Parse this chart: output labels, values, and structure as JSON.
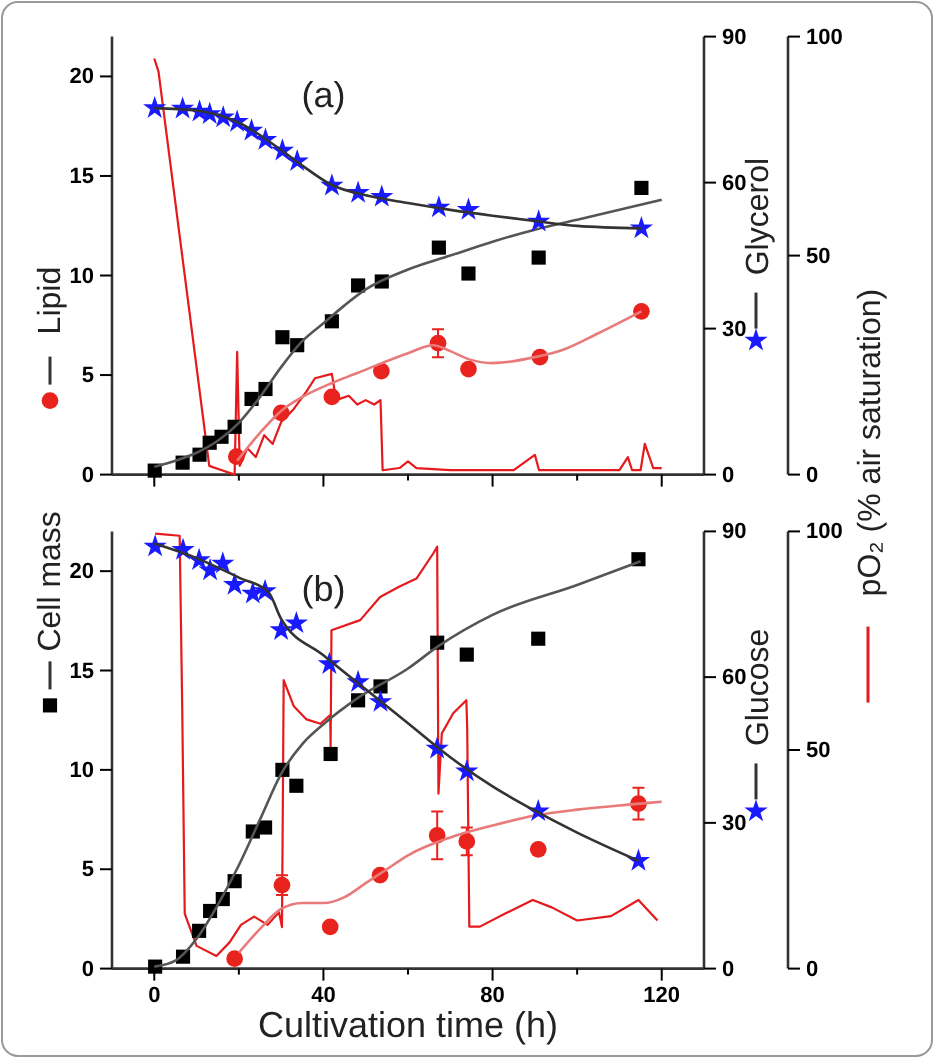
{
  "chart_data": [
    {
      "type": "scatter",
      "title": "(a)",
      "ylabel": "Lipid",
      "y2label": "Glycerol",
      "xlim": [
        -10,
        130
      ],
      "xticks": [
        0,
        {
          "value": 20,
          "label": null
        },
        40,
        {
          "value": 60,
          "label": null
        },
        80,
        {
          "value": 100,
          "label": null
        },
        120
      ],
      "ylim": [
        0,
        22
      ],
      "yticks": [
        0,
        5,
        10,
        15,
        20
      ],
      "y2lim": [
        0,
        90
      ],
      "y2ticks": [
        0,
        30,
        60,
        90
      ],
      "y3lim": [
        0,
        100
      ],
      "y3ticks": [
        0,
        50,
        100
      ],
      "tick_labels": "y",
      "grid": false,
      "series": [
        {
          "marker": "square",
          "color": "#000000",
          "x": [
            0.1,
            6.7,
            10.7,
            13.1,
            15.9,
            19,
            23,
            26.3,
            30.3,
            33.8,
            42,
            48.2,
            53.8,
            67.3,
            74.3,
            90.9,
            115.2
          ],
          "values": [
            0.2,
            0.6,
            1.0,
            1.6,
            1.9,
            2.4,
            3.8,
            4.3,
            6.9,
            6.5,
            7.7,
            9.5,
            9.7,
            11.4,
            10.1,
            10.9,
            14.4
          ]
        },
        {
          "type": "line",
          "color": "#555555",
          "x": [
            0,
            5,
            10,
            15,
            20,
            25,
            30,
            35,
            40,
            45,
            50,
            60,
            70,
            80,
            90,
            100,
            110,
            120
          ],
          "values": [
            0.4,
            0.7,
            1.1,
            1.7,
            2.6,
            3.9,
            5.4,
            6.7,
            7.6,
            8.5,
            9.3,
            10.3,
            11.0,
            11.7,
            12.3,
            12.8,
            13.3,
            13.8
          ]
        },
        {
          "marker": "circle",
          "color": "#e8231d",
          "x": [
            19.4,
            30,
            42,
            53.7,
            67.1,
            74.3,
            91.2,
            115.2
          ],
          "values": [
            0.9,
            3.1,
            3.9,
            5.2,
            6.6,
            5.3,
            5.9,
            8.2
          ],
          "errors": [
            null,
            null,
            null,
            null,
            0.7,
            null,
            null,
            null
          ]
        },
        {
          "type": "line",
          "color": "#e87a7a",
          "x": [
            19.6,
            25,
            30,
            35,
            42,
            48,
            53.8,
            60,
            66,
            70,
            74.3,
            80,
            90,
            97,
            105,
            115.2
          ],
          "values": [
            0.7,
            2.1,
            3.2,
            3.9,
            4.6,
            5.1,
            5.6,
            6.1,
            6.5,
            6.2,
            5.8,
            5.6,
            5.9,
            6.3,
            7.1,
            8.2
          ]
        },
        {
          "marker": "star",
          "color": "#1a1aff",
          "axis": "y2",
          "x": [
            0.1,
            6.7,
            10.7,
            13.1,
            16.3,
            19.6,
            23,
            26.3,
            30.3,
            33.8,
            42,
            48.2,
            53.8,
            67.3,
            74.3,
            90.9,
            115.2
          ],
          "values": [
            75.3,
            75.2,
            74.6,
            74.1,
            73.4,
            72.5,
            70.7,
            68.8,
            66.6,
            64.4,
            59.4,
            57.9,
            57.1,
            54.9,
            54.4,
            52.0,
            50.6
          ]
        },
        {
          "type": "line",
          "color": "#333333",
          "axis": "y2",
          "x": [
            0,
            10,
            20,
            30,
            35,
            42,
            50,
            60,
            70,
            80,
            90,
            100,
            115.2
          ],
          "values": [
            75.3,
            74.8,
            72.3,
            66.7,
            63.5,
            59.5,
            57.4,
            55.8,
            54.4,
            53.2,
            52.1,
            51.1,
            50.6
          ]
        },
        {
          "type": "line",
          "color": "#e41a1c",
          "axis": "y3",
          "x": [
            0,
            1,
            13,
            16,
            19,
            19.6,
            20.2,
            22,
            24,
            26,
            28,
            30,
            33,
            36,
            38,
            42,
            43,
            46,
            48,
            50,
            52,
            53.5,
            54,
            58,
            60,
            62,
            70,
            80,
            85,
            90,
            91,
            100,
            110,
            112,
            113,
            115,
            116,
            118,
            120
          ],
          "values": [
            95,
            92,
            2,
            1,
            0,
            28,
            2,
            6,
            4,
            9,
            7,
            12,
            15,
            19,
            22,
            23,
            17,
            18,
            16,
            17,
            16,
            17,
            1,
            1.5,
            3,
            1.5,
            1,
            1,
            1,
            4.5,
            1,
            1,
            1,
            4,
            1,
            1,
            7,
            1.5,
            1.5
          ]
        }
      ]
    },
    {
      "type": "scatter",
      "title": "(b)",
      "xlabel": "Cultivation time (h)",
      "ylabel": "Cell mass",
      "y2label": "Glucose",
      "y3label": "pO₂ (% air saturation)",
      "xlim": [
        -10,
        130
      ],
      "xticks": [
        0,
        {
          "value": 20,
          "label": null
        },
        40,
        {
          "value": 60,
          "label": null
        },
        80,
        {
          "value": 100,
          "label": null
        },
        120
      ],
      "ylim": [
        0,
        22
      ],
      "yticks": [
        0,
        5,
        10,
        15,
        20
      ],
      "y2lim": [
        0,
        90
      ],
      "y2ticks": [
        0,
        30,
        60,
        90
      ],
      "y3lim": [
        0,
        100
      ],
      "y3ticks": [
        0,
        50,
        100
      ],
      "grid": false,
      "series": [
        {
          "marker": "square",
          "color": "#000000",
          "x": [
            0.2,
            6.8,
            10.6,
            13.2,
            16.2,
            19,
            23.3,
            26.2,
            30.3,
            33.6,
            41.7,
            48.2,
            53.5,
            66.9,
            73.9,
            90.8,
            114.5
          ],
          "values": [
            0.1,
            0.6,
            1.9,
            2.9,
            3.5,
            4.4,
            6.9,
            7.1,
            10.0,
            9.2,
            10.8,
            13.5,
            14.2,
            16.4,
            15.8,
            16.6,
            20.6
          ]
        },
        {
          "type": "line",
          "color": "#555555",
          "x": [
            0,
            5,
            10,
            15,
            20,
            25,
            30,
            35,
            40,
            48,
            60,
            67,
            80,
            100,
            115
          ],
          "values": [
            0.1,
            0.4,
            1.5,
            3.2,
            5.2,
            7.5,
            9.8,
            11.3,
            12.3,
            13.6,
            15.1,
            16.2,
            17.8,
            19.3,
            20.5
          ]
        },
        {
          "marker": "circle",
          "color": "#e8231d",
          "x": [
            19,
            30.2,
            41.6,
            53.4,
            66.9,
            73.9,
            90.8,
            114.5
          ],
          "values": [
            0.5,
            4.2,
            2.1,
            4.7,
            6.7,
            6.4,
            6.0,
            8.3
          ],
          "errors": [
            null,
            0.5,
            null,
            null,
            1.2,
            0.7,
            null,
            0.8
          ]
        },
        {
          "type": "line",
          "color": "#e87a7a",
          "x": [
            20,
            25,
            30,
            35,
            40,
            45,
            50,
            55,
            60,
            70,
            80,
            90,
            100,
            115,
            120
          ],
          "values": [
            0.8,
            2.0,
            3.0,
            3.3,
            3.3,
            3.6,
            4.3,
            5.0,
            5.7,
            6.6,
            7.2,
            7.7,
            8.0,
            8.3,
            8.4
          ]
        },
        {
          "marker": "star",
          "color": "#1a1aff",
          "axis": "y2",
          "x": [
            0.2,
            6.8,
            10.6,
            13.2,
            16.2,
            19,
            23.3,
            26.2,
            30,
            33.6,
            41.4,
            48.2,
            53.5,
            66.9,
            73.9,
            90.8,
            114.5
          ],
          "values": [
            86.9,
            86.2,
            84.1,
            82.0,
            83.4,
            79.0,
            77.2,
            77.7,
            69.7,
            71.1,
            62.7,
            59.0,
            54.9,
            45.3,
            40.6,
            32.4,
            22.2
          ]
        },
        {
          "type": "line",
          "color": "#333333",
          "axis": "y2",
          "x": [
            0,
            10,
            20,
            27,
            30,
            40,
            50,
            60,
            70,
            80,
            90,
            100,
            114.5
          ],
          "values": [
            87.5,
            84.5,
            80.5,
            77.5,
            72,
            64.5,
            57.5,
            50.5,
            43.5,
            37.5,
            32.5,
            28,
            22.2
          ]
        },
        {
          "type": "line",
          "color": "#e41a1c",
          "axis": "y3",
          "x": [
            0.2,
            6,
            6.6,
            7.2,
            10,
            14.7,
            17.8,
            20.5,
            23.6,
            26.8,
            29.5,
            30.2,
            30.6,
            33,
            36,
            39.3,
            41.6,
            41.7,
            41.9,
            48.7,
            53.4,
            58,
            62,
            66,
            66.9,
            67.2,
            68,
            70.7,
            73.8,
            74,
            74.5,
            77,
            83,
            89.5,
            94,
            100,
            108,
            114.5,
            119
          ],
          "values": [
            99.5,
            99,
            60,
            12.6,
            5.2,
            2.9,
            6,
            10,
            11.9,
            10,
            12.9,
            9.5,
            66,
            60,
            57,
            56,
            58,
            50.8,
            77.4,
            79.7,
            85,
            87.4,
            89.2,
            95,
            96.5,
            40,
            53.8,
            58.4,
            61.4,
            55,
            9.6,
            9.6,
            12.6,
            15.7,
            14,
            11,
            12,
            15.7,
            11
          ]
        }
      ]
    }
  ]
}
